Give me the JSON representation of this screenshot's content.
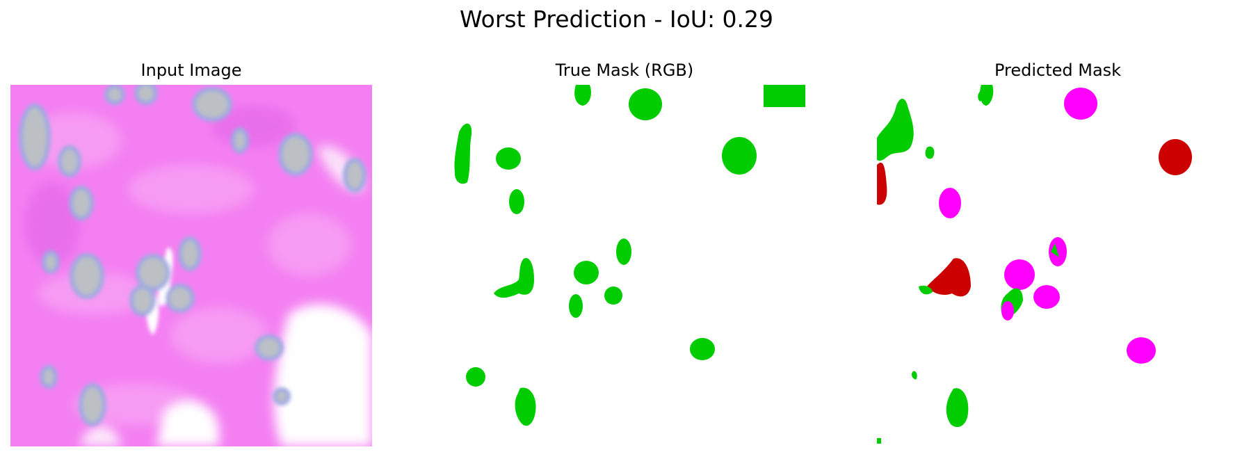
{
  "figure": {
    "title": "Worst Prediction - IoU: 0.29"
  },
  "panels": [
    {
      "title": "Input Image"
    },
    {
      "title": "True Mask (RGB)"
    },
    {
      "title": "Predicted Mask"
    }
  ],
  "colors": {
    "tissue_background": "#f47ff2",
    "nucleus_fill": "#bcc0c4",
    "nucleus_rim": "#9ea9e2",
    "true_mask_class": "#00cc00",
    "pred_class_red": "#cc0000",
    "pred_class_magenta": "#ff00ff",
    "pred_class_green": "#00cc00"
  }
}
